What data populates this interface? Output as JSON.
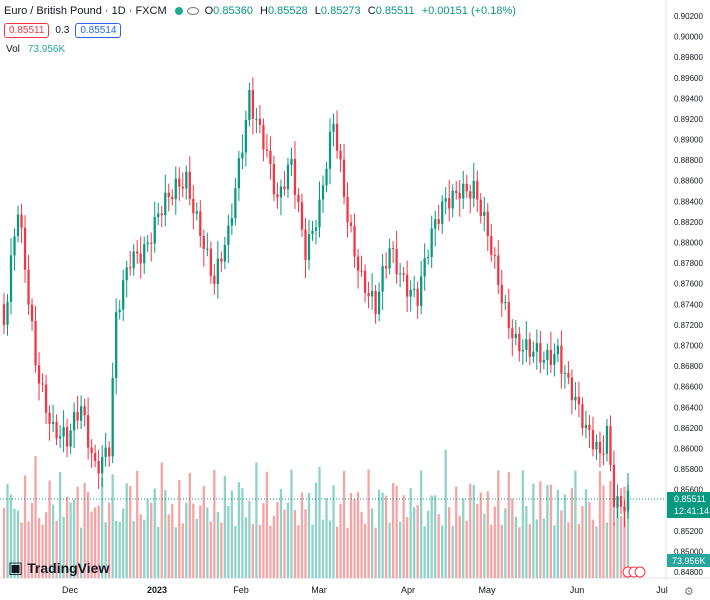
{
  "header": {
    "symbol": "Euro / British Pound · 1D · FXCM",
    "o_label": "O",
    "o": "0.85360",
    "h_label": "H",
    "h": "0.85528",
    "l_label": "L",
    "l": "0.85273",
    "c_label": "C",
    "c": "0.85511",
    "change": "+0.00151 (+0.18%)"
  },
  "quote": {
    "sell": "0.85511",
    "spread": "0.3",
    "buy": "0.85514"
  },
  "volume": {
    "label": "Vol",
    "value": "73.956K"
  },
  "price_tag": {
    "value": "0.85511",
    "countdown": "12:41:14"
  },
  "volume_tag": "73.956K",
  "brand": "TradingView",
  "colors": {
    "up": "#089981",
    "down": "#f23645",
    "vol_up": "#8fd2c8",
    "vol_down": "#f5a3a3"
  },
  "chart_data": {
    "type": "candlestick",
    "symbol": "EURGBP",
    "interval": "1D",
    "ylim": [
      0.848,
      0.902
    ],
    "y_ticks": [
      0.902,
      0.9,
      0.898,
      0.896,
      0.894,
      0.892,
      0.89,
      0.888,
      0.886,
      0.884,
      0.882,
      0.88,
      0.878,
      0.876,
      0.874,
      0.872,
      0.87,
      0.868,
      0.866,
      0.864,
      0.862,
      0.86,
      0.858,
      0.856,
      0.852,
      0.85,
      0.848
    ],
    "x_labels": [
      "Dec",
      "2023",
      "Feb",
      "Mar",
      "Apr",
      "May",
      "Jun",
      "Jul"
    ],
    "volume_max": 150,
    "anchors": [
      [
        0,
        0.872
      ],
      [
        4,
        0.8825
      ],
      [
        9,
        0.869
      ],
      [
        14,
        0.862
      ],
      [
        18,
        0.86
      ],
      [
        22,
        0.864
      ],
      [
        26,
        0.859
      ],
      [
        30,
        0.86
      ],
      [
        32,
        0.872
      ],
      [
        36,
        0.878
      ],
      [
        40,
        0.88
      ],
      [
        44,
        0.883
      ],
      [
        48,
        0.884
      ],
      [
        52,
        0.886
      ],
      [
        56,
        0.882
      ],
      [
        60,
        0.876
      ],
      [
        64,
        0.88
      ],
      [
        66,
        0.885
      ],
      [
        70,
        0.895
      ],
      [
        74,
        0.89
      ],
      [
        78,
        0.883
      ],
      [
        82,
        0.888
      ],
      [
        86,
        0.88
      ],
      [
        90,
        0.883
      ],
      [
        94,
        0.891
      ],
      [
        98,
        0.883
      ],
      [
        102,
        0.877
      ],
      [
        106,
        0.873
      ],
      [
        110,
        0.879
      ],
      [
        114,
        0.877
      ],
      [
        118,
        0.875
      ],
      [
        122,
        0.88
      ],
      [
        126,
        0.884
      ],
      [
        130,
        0.886
      ],
      [
        134,
        0.885
      ],
      [
        138,
        0.88
      ],
      [
        142,
        0.875
      ],
      [
        146,
        0.871
      ],
      [
        150,
        0.869
      ],
      [
        154,
        0.868
      ],
      [
        158,
        0.87
      ],
      [
        162,
        0.866
      ],
      [
        166,
        0.861
      ],
      [
        170,
        0.859
      ],
      [
        172,
        0.862
      ],
      [
        174,
        0.856
      ],
      [
        176,
        0.855
      ],
      [
        178,
        0.8551
      ]
    ]
  }
}
